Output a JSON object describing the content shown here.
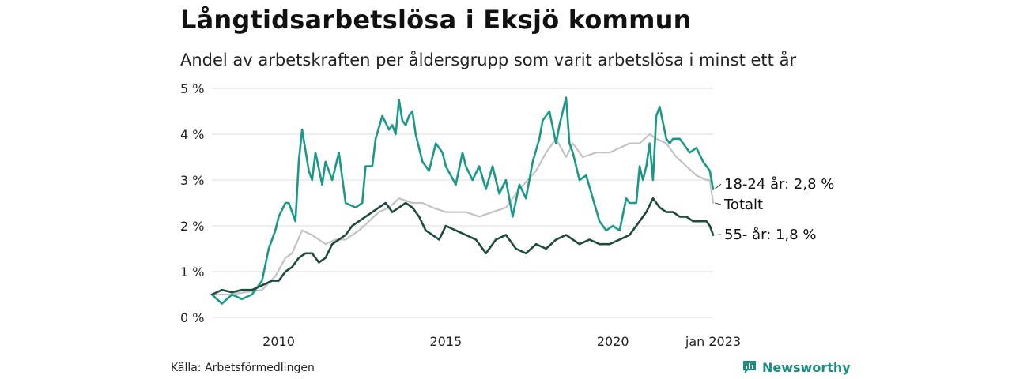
{
  "title": "Långtidsarbetslösa i Eksjö kommun",
  "subtitle": "Andel av arbetskraften per åldersgrupp som varit arbetslösa i minst ett år",
  "source": "Källa: Arbetsförmedlingen",
  "brand": {
    "name": "Newsworthy",
    "icon": "bar-chart-logo-icon"
  },
  "colors": {
    "youth": "#1a9a86",
    "total": "#c3c2c6",
    "older": "#1e4a3f",
    "grid": "#e3e3e3"
  },
  "chart_data": {
    "type": "line",
    "ylim": [
      0,
      5
    ],
    "yticks": [
      0,
      1,
      2,
      3,
      4,
      5
    ],
    "ytick_labels": [
      "0 %",
      "1 %",
      "2 %",
      "3 %",
      "4 %",
      "5 %"
    ],
    "xlim": [
      2008.0,
      2023.0
    ],
    "xticks": [
      2010,
      2015,
      2020,
      2023
    ],
    "xtick_labels": [
      "2010",
      "2015",
      "2020",
      "jan 2023"
    ],
    "grid": true,
    "series": [
      {
        "key": "total",
        "name": "Totalt",
        "end_label": "Totalt",
        "color": "#c3c2c6",
        "x": [
          2008.0,
          2008.5,
          2009.0,
          2009.5,
          2009.9,
          2010.2,
          2010.4,
          2010.7,
          2011.0,
          2011.4,
          2011.7,
          2012.0,
          2012.4,
          2012.7,
          2013.0,
          2013.3,
          2013.6,
          2014.0,
          2014.3,
          2014.6,
          2015.0,
          2015.3,
          2015.6,
          2016.0,
          2016.4,
          2016.8,
          2017.2,
          2017.7,
          2018.0,
          2018.3,
          2018.6,
          2018.8,
          2019.1,
          2019.5,
          2019.9,
          2020.2,
          2020.5,
          2020.8,
          2021.1,
          2021.3,
          2021.6,
          2021.9,
          2022.2,
          2022.5,
          2022.8,
          2022.9,
          2023.0
        ],
        "y": [
          0.5,
          0.5,
          0.55,
          0.6,
          0.9,
          1.3,
          1.4,
          1.9,
          1.8,
          1.6,
          1.7,
          1.7,
          1.9,
          2.1,
          2.3,
          2.4,
          2.6,
          2.5,
          2.5,
          2.4,
          2.3,
          2.3,
          2.3,
          2.2,
          2.3,
          2.4,
          2.8,
          3.2,
          3.6,
          3.9,
          3.5,
          3.8,
          3.5,
          3.6,
          3.6,
          3.7,
          3.8,
          3.8,
          4.0,
          3.9,
          3.8,
          3.5,
          3.3,
          3.1,
          3.0,
          3.0,
          2.5
        ]
      },
      {
        "key": "youth",
        "name": "18-24 år",
        "end_label": "18-24 år: 2,8 %",
        "color": "#1a9a86",
        "x": [
          2008.0,
          2008.3,
          2008.6,
          2008.9,
          2009.2,
          2009.5,
          2009.7,
          2009.9,
          2010.0,
          2010.2,
          2010.3,
          2010.5,
          2010.6,
          2010.7,
          2010.9,
          2011.0,
          2011.1,
          2011.3,
          2011.4,
          2011.6,
          2011.8,
          2012.0,
          2012.3,
          2012.5,
          2012.6,
          2012.8,
          2012.9,
          2013.1,
          2013.3,
          2013.4,
          2013.5,
          2013.6,
          2013.7,
          2013.8,
          2013.9,
          2014.0,
          2014.1,
          2014.3,
          2014.5,
          2014.7,
          2014.9,
          2015.0,
          2015.3,
          2015.5,
          2015.6,
          2015.8,
          2016.0,
          2016.2,
          2016.4,
          2016.6,
          2016.8,
          2017.0,
          2017.2,
          2017.4,
          2017.6,
          2017.8,
          2017.9,
          2018.1,
          2018.3,
          2018.4,
          2018.6,
          2018.7,
          2018.8,
          2019.0,
          2019.2,
          2019.4,
          2019.6,
          2019.8,
          2020.0,
          2020.2,
          2020.4,
          2020.5,
          2020.7,
          2020.8,
          2020.9,
          2021.0,
          2021.1,
          2021.2,
          2021.3,
          2021.4,
          2021.6,
          2021.7,
          2021.8,
          2022.0,
          2022.1,
          2022.3,
          2022.5,
          2022.7,
          2022.9,
          2023.0
        ],
        "y": [
          0.5,
          0.3,
          0.5,
          0.4,
          0.5,
          0.8,
          1.5,
          1.9,
          2.2,
          2.5,
          2.5,
          2.1,
          3.4,
          4.1,
          3.2,
          3.0,
          3.6,
          2.9,
          3.4,
          3.0,
          3.6,
          2.5,
          2.4,
          2.5,
          3.3,
          3.3,
          3.9,
          4.4,
          4.1,
          4.2,
          4.0,
          4.75,
          4.3,
          4.2,
          4.4,
          4.5,
          4.0,
          3.4,
          3.2,
          3.8,
          3.6,
          3.3,
          2.9,
          3.6,
          3.3,
          3.0,
          3.3,
          2.8,
          3.3,
          2.7,
          3.0,
          2.2,
          2.9,
          2.6,
          3.4,
          3.9,
          4.3,
          4.5,
          3.8,
          4.2,
          4.8,
          3.8,
          3.6,
          3.0,
          3.1,
          2.6,
          2.1,
          1.9,
          2.0,
          1.9,
          2.6,
          2.5,
          2.5,
          3.3,
          3.0,
          3.3,
          3.8,
          3.0,
          4.4,
          4.6,
          3.9,
          3.8,
          3.9,
          3.9,
          3.8,
          3.6,
          3.7,
          3.4,
          3.2,
          2.8
        ]
      },
      {
        "key": "older",
        "name": "55- år",
        "end_label": "55- år: 1,8 %",
        "color": "#1e4a3f",
        "x": [
          2008.0,
          2008.3,
          2008.6,
          2008.9,
          2009.2,
          2009.5,
          2009.8,
          2010.0,
          2010.2,
          2010.4,
          2010.6,
          2010.8,
          2011.0,
          2011.2,
          2011.4,
          2011.6,
          2011.8,
          2012.0,
          2012.2,
          2012.4,
          2012.6,
          2012.8,
          2013.0,
          2013.2,
          2013.4,
          2013.6,
          2013.8,
          2014.0,
          2014.2,
          2014.4,
          2014.6,
          2014.8,
          2015.0,
          2015.3,
          2015.6,
          2015.9,
          2016.2,
          2016.5,
          2016.8,
          2017.1,
          2017.4,
          2017.7,
          2018.0,
          2018.3,
          2018.6,
          2018.8,
          2019.0,
          2019.3,
          2019.6,
          2019.9,
          2020.2,
          2020.5,
          2020.8,
          2021.0,
          2021.2,
          2021.4,
          2021.6,
          2021.8,
          2022.0,
          2022.2,
          2022.4,
          2022.6,
          2022.8,
          2022.9,
          2023.0
        ],
        "y": [
          0.5,
          0.6,
          0.55,
          0.6,
          0.6,
          0.7,
          0.8,
          0.8,
          1.0,
          1.1,
          1.3,
          1.4,
          1.4,
          1.2,
          1.3,
          1.6,
          1.7,
          1.8,
          2.0,
          2.1,
          2.2,
          2.3,
          2.4,
          2.5,
          2.3,
          2.4,
          2.5,
          2.4,
          2.2,
          1.9,
          1.8,
          1.7,
          2.0,
          1.9,
          1.8,
          1.7,
          1.4,
          1.7,
          1.8,
          1.5,
          1.4,
          1.6,
          1.5,
          1.7,
          1.8,
          1.7,
          1.6,
          1.7,
          1.6,
          1.6,
          1.7,
          1.8,
          2.1,
          2.3,
          2.6,
          2.4,
          2.3,
          2.3,
          2.2,
          2.2,
          2.1,
          2.1,
          2.1,
          2.0,
          1.8
        ]
      }
    ]
  }
}
